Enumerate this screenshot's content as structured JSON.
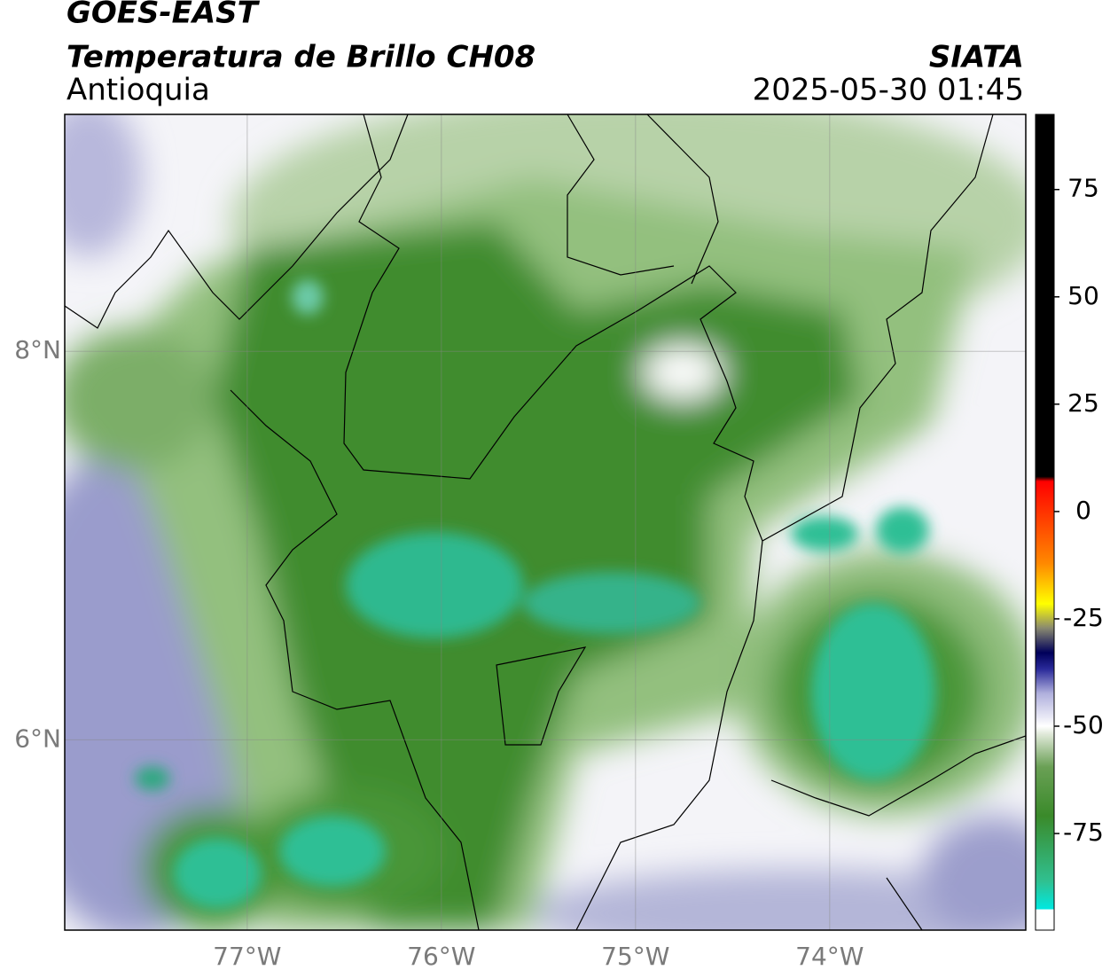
{
  "chart_data": {
    "type": "map",
    "title": "GOES-EAST",
    "subtitle": "Temperatura de Brillo CH08",
    "region": "Antioquia",
    "source": "SIATA",
    "datetime": "2025-05-30 01:45",
    "xlim": [
      -77.94,
      -72.99
    ],
    "ylim": [
      5.02,
      9.22
    ],
    "xticks": [
      {
        "value": -77,
        "label": "77°W"
      },
      {
        "value": -76,
        "label": "76°W"
      },
      {
        "value": -75,
        "label": "75°W"
      },
      {
        "value": -74,
        "label": "74°W"
      }
    ],
    "yticks": [
      {
        "value": 8,
        "label": "8°N"
      },
      {
        "value": 6,
        "label": "6°N"
      }
    ],
    "grid": true,
    "colorbar": {
      "lim": [
        -97.5,
        92.5
      ],
      "ticks": [
        75,
        50,
        25,
        0,
        -25,
        -50,
        -75
      ]
    }
  }
}
